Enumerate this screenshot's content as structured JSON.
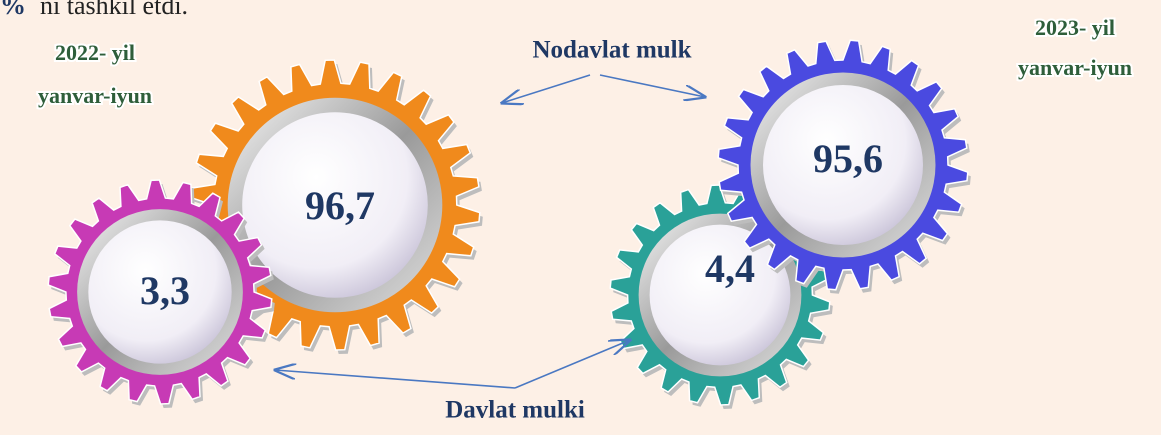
{
  "header": {
    "bold": "%",
    "rest": "ni tashkil etdi."
  },
  "periods": [
    {
      "year": "2022- yil",
      "months": "yanvar-iyun"
    },
    {
      "year": "2023- yil",
      "months": "yanvar-iyun"
    }
  ],
  "labels": {
    "non_state": "Nodavlat mulk",
    "state": "Davlat mulki"
  },
  "gears": [
    {
      "label": "96,7"
    },
    {
      "label": "3,3"
    },
    {
      "label": "95,6"
    },
    {
      "label": "4,4"
    }
  ]
}
